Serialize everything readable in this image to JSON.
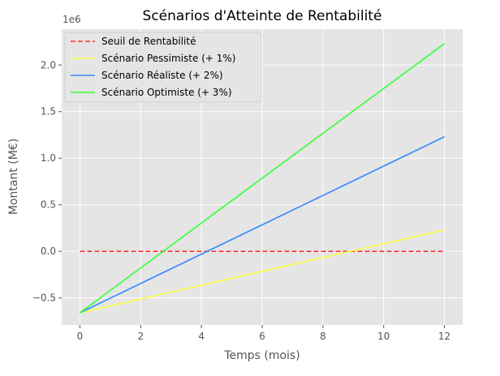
{
  "chart_data": {
    "type": "line",
    "title": "Scénarios d'Atteinte de Rentabilité",
    "xlabel": "Temps (mois)",
    "ylabel": "Montant (M€)",
    "y_scale_label": "1e6",
    "xlim": [
      -0.6,
      12.6
    ],
    "ylim": [
      -790000,
      2385000
    ],
    "x_ticks": [
      0,
      2,
      4,
      6,
      8,
      10,
      12
    ],
    "x_tick_labels": [
      "0",
      "2",
      "4",
      "6",
      "8",
      "10",
      "12"
    ],
    "y_ticks": [
      -500000,
      0,
      500000,
      1000000,
      1500000,
      2000000
    ],
    "y_tick_labels": [
      "−0.5",
      "0.0",
      "0.5",
      "1.0",
      "1.5",
      "2.0"
    ],
    "grid": true,
    "legend_position": "top-left",
    "series": [
      {
        "name": "Seuil de Rentabilité",
        "color": "#ff3333",
        "dash": "dashed",
        "x": [
          0,
          12
        ],
        "y": [
          0,
          0
        ]
      },
      {
        "name": "Scénario Pessimiste (+ 1%)",
        "color": "#ffff44",
        "dash": "solid",
        "x": [
          0,
          12
        ],
        "y": [
          -660000,
          230000
        ]
      },
      {
        "name": "Scénario Réaliste (+ 2%)",
        "color": "#3388ff",
        "dash": "solid",
        "x": [
          0,
          12
        ],
        "y": [
          -660000,
          1230000
        ]
      },
      {
        "name": "Scénario Optimiste (+ 3%)",
        "color": "#33ff33",
        "dash": "solid",
        "x": [
          0,
          12
        ],
        "y": [
          -660000,
          2230000
        ]
      }
    ],
    "colors": {
      "plot_background": "#e5e5e5",
      "grid": "#ffffff",
      "text": "#555555"
    }
  }
}
